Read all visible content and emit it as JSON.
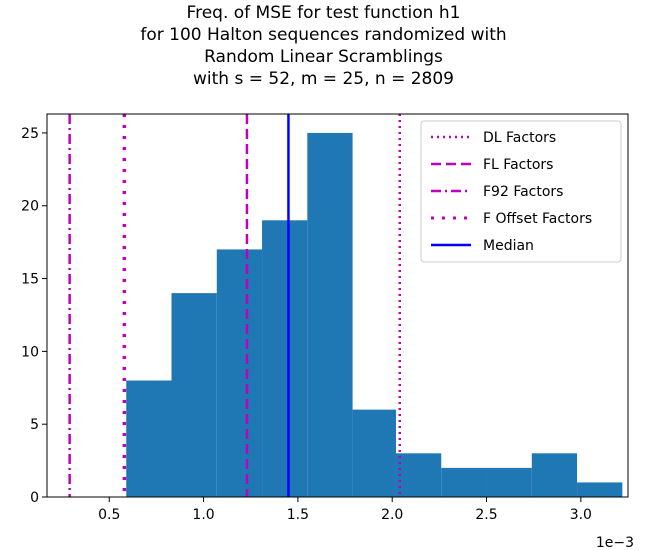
{
  "chart_data": {
    "type": "bar",
    "title_lines": [
      "Freq. of MSE for test function h1",
      "for 100 Halton sequences randomized with",
      "Random Linear Scramblings",
      "with s = 52, m = 25, n = 2809"
    ],
    "xlabel": "",
    "ylabel": "",
    "x_offset_label": "1e−3",
    "xlim": [
      0.17,
      3.25
    ],
    "ylim": [
      0,
      26.3
    ],
    "x_ticks": [
      0.5,
      1.0,
      1.5,
      2.0,
      2.5,
      3.0
    ],
    "x_tick_labels": [
      "0.5",
      "1.0",
      "1.5",
      "2.0",
      "2.5",
      "3.0"
    ],
    "y_ticks": [
      0,
      5,
      10,
      15,
      20,
      25
    ],
    "y_tick_labels": [
      "0",
      "5",
      "10",
      "15",
      "20",
      "25"
    ],
    "bar_color": "#1f77b4",
    "bins": [
      {
        "x0": 0.59,
        "x1": 0.83,
        "count": 8
      },
      {
        "x0": 0.83,
        "x1": 1.07,
        "count": 14
      },
      {
        "x0": 1.07,
        "x1": 1.31,
        "count": 17
      },
      {
        "x0": 1.31,
        "x1": 1.55,
        "count": 19
      },
      {
        "x0": 1.55,
        "x1": 1.79,
        "count": 25
      },
      {
        "x0": 1.79,
        "x1": 2.02,
        "count": 6
      },
      {
        "x0": 2.02,
        "x1": 2.26,
        "count": 3
      },
      {
        "x0": 2.26,
        "x1": 2.5,
        "count": 2
      },
      {
        "x0": 2.5,
        "x1": 2.74,
        "count": 2
      },
      {
        "x0": 2.74,
        "x1": 2.98,
        "count": 3
      },
      {
        "x0": 2.98,
        "x1": 3.22,
        "count": 1
      }
    ],
    "vlines": [
      {
        "name": "DL Factors",
        "x": 2.04,
        "color": "#bf00bf",
        "dash": "2,4",
        "width": 2.5
      },
      {
        "name": "FL Factors",
        "x": 1.23,
        "color": "#bf00bf",
        "dash": "10,5",
        "width": 2.5
      },
      {
        "name": "F92 Factors",
        "x": 0.29,
        "color": "#bf00bf",
        "dash": "10,4,2,4",
        "width": 2.5
      },
      {
        "name": "F Offset Factors",
        "x": 0.58,
        "color": "#bf00bf",
        "dash": "3,8",
        "width": 3.5
      },
      {
        "name": "Median",
        "x": 1.45,
        "color": "#0000ff",
        "dash": "",
        "width": 2.5
      }
    ],
    "legend_position": "upper right"
  }
}
